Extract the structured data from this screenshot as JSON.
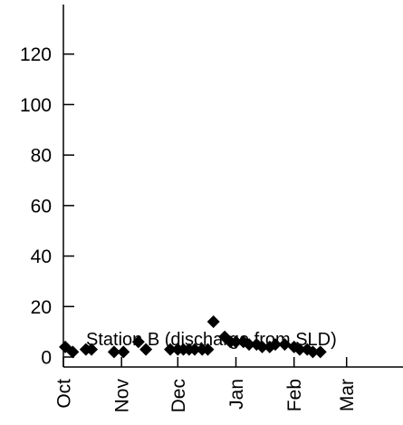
{
  "chart_data": {
    "type": "scatter",
    "title": "",
    "xlabel": "",
    "ylabel": "",
    "annotation": "Station B (discharge from SLD)",
    "x_axis": {
      "tick_labels": [
        "Oct",
        "Nov",
        "Dec",
        "Jan",
        "Feb",
        "Mar"
      ],
      "range": [
        "Oct 1",
        "Apr 1"
      ]
    },
    "y_axis": {
      "ticks": [
        0,
        20,
        40,
        60,
        80,
        100,
        120
      ],
      "range": [
        -3,
        140
      ]
    },
    "grid": false,
    "marker": "diamond",
    "marker_color": "#000000",
    "points": [
      {
        "x": "Oct 2",
        "y": 4
      },
      {
        "x": "Oct 6",
        "y": 2
      },
      {
        "x": "Oct 13",
        "y": 3
      },
      {
        "x": "Oct 16",
        "y": 3
      },
      {
        "x": "Oct 28",
        "y": 2
      },
      {
        "x": "Nov 2",
        "y": 2
      },
      {
        "x": "Nov 10",
        "y": 6
      },
      {
        "x": "Nov 14",
        "y": 3
      },
      {
        "x": "Nov 27",
        "y": 3
      },
      {
        "x": "Dec 1",
        "y": 3
      },
      {
        "x": "Dec 4",
        "y": 3
      },
      {
        "x": "Dec 7",
        "y": 3
      },
      {
        "x": "Dec 10",
        "y": 3
      },
      {
        "x": "Dec 14",
        "y": 3
      },
      {
        "x": "Dec 17",
        "y": 3
      },
      {
        "x": "Dec 20",
        "y": 14
      },
      {
        "x": "Dec 26",
        "y": 8
      },
      {
        "x": "Dec 29",
        "y": 6
      },
      {
        "x": "Jan 1",
        "y": 6
      },
      {
        "x": "Jan 5",
        "y": 6
      },
      {
        "x": "Jan 8",
        "y": 5
      },
      {
        "x": "Jan 12",
        "y": 5
      },
      {
        "x": "Jan 15",
        "y": 4
      },
      {
        "x": "Jan 19",
        "y": 4
      },
      {
        "x": "Jan 22",
        "y": 5
      },
      {
        "x": "Jan 27",
        "y": 5
      },
      {
        "x": "Feb 1",
        "y": 4
      },
      {
        "x": "Feb 4",
        "y": 3
      },
      {
        "x": "Feb 8",
        "y": 3
      },
      {
        "x": "Feb 11",
        "y": 2
      },
      {
        "x": "Feb 15",
        "y": 2
      }
    ]
  }
}
